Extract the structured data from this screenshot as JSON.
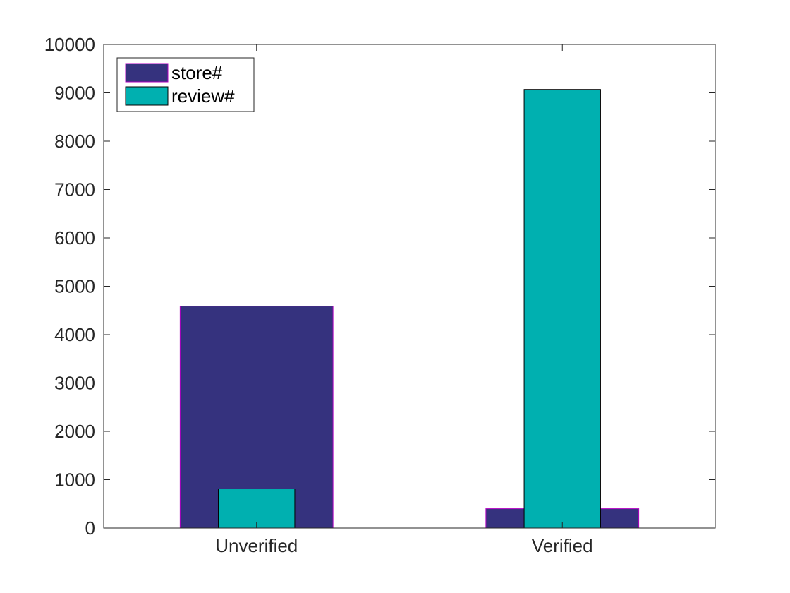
{
  "chart_data": {
    "type": "bar",
    "categories": [
      "Unverified",
      "Verified"
    ],
    "series": [
      {
        "name": "store#",
        "values": [
          4590,
          400
        ],
        "color": "#35327e",
        "edge": "#b000c0",
        "width_fraction": 0.5
      },
      {
        "name": "review#",
        "values": [
          810,
          9070
        ],
        "color": "#00b0b0",
        "edge": "#000000",
        "width_fraction": 0.25
      }
    ],
    "ylim": [
      0,
      10000
    ],
    "yticks": [
      0,
      1000,
      2000,
      3000,
      4000,
      5000,
      6000,
      7000,
      8000,
      9000,
      10000
    ],
    "title": "",
    "xlabel": "",
    "ylabel": "",
    "grid": false,
    "legend_position": "top-left",
    "overlaid_bars": true
  }
}
